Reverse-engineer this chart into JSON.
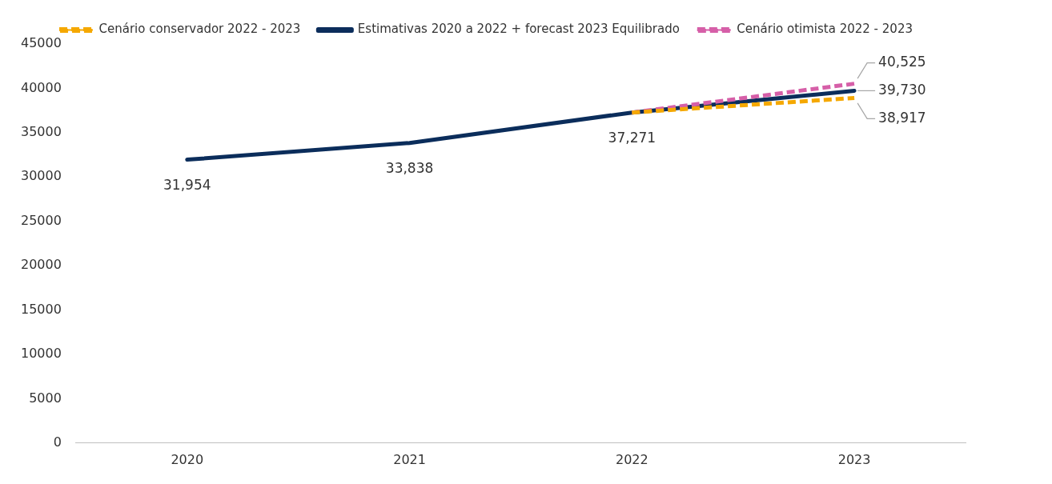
{
  "chart_data": {
    "type": "line",
    "categories": [
      "2020",
      "2021",
      "2022",
      "2023"
    ],
    "series": [
      {
        "name": "Cenário conservador 2022 - 2023",
        "color": "#f5a800",
        "line_style": "dashed",
        "values": [
          null,
          null,
          37271,
          38917
        ],
        "value_labels": [
          null,
          null,
          null,
          "38,917"
        ]
      },
      {
        "name": "Estimativas 2020 a 2022 + forecast 2023 Equilibrado",
        "color": "#0b2d5b",
        "line_style": "solid",
        "values": [
          31954,
          33838,
          37271,
          39730
        ],
        "value_labels": [
          "31,954",
          "33,838",
          "37,271",
          "39,730"
        ]
      },
      {
        "name": "Cenário otimista 2022 - 2023",
        "color": "#d65fa8",
        "line_style": "dashed",
        "values": [
          null,
          null,
          37271,
          40525
        ],
        "value_labels": [
          null,
          null,
          null,
          "40,525"
        ]
      }
    ],
    "ylim": [
      0,
      45000
    ],
    "yticks": [
      0,
      5000,
      10000,
      15000,
      20000,
      25000,
      30000,
      35000,
      40000,
      45000
    ],
    "grid": false,
    "legend": "top",
    "marker": "none"
  }
}
